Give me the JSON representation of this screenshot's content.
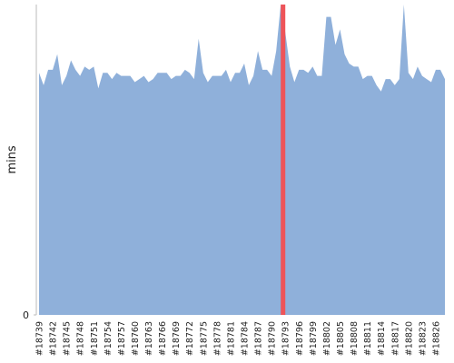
{
  "chart_data": {
    "type": "area",
    "y_label": "mins",
    "categories_start": 18739,
    "categories": [
      "#18739",
      null,
      null,
      "#18742",
      null,
      null,
      "#18745",
      null,
      null,
      "#18748",
      null,
      null,
      "#18751",
      null,
      null,
      "#18754",
      null,
      null,
      "#18757",
      null,
      null,
      "#18760",
      null,
      null,
      "#18763",
      null,
      null,
      "#18766",
      null,
      null,
      "#18769",
      null,
      null,
      "#18772",
      null,
      null,
      "#18775",
      null,
      null,
      "#18778",
      null,
      null,
      "#18781",
      null,
      null,
      "#18784",
      null,
      null,
      "#18787",
      null,
      null,
      "#18790",
      null,
      null,
      "#18793",
      null,
      null,
      "#18796",
      null,
      null,
      "#18799",
      null,
      null,
      "#18802",
      null,
      null,
      "#18805",
      null,
      null,
      "#18808",
      null,
      null,
      "#18811",
      null,
      null,
      "#18814",
      null,
      null,
      "#18817",
      null,
      null,
      "#18820",
      null,
      null,
      "#18823",
      null,
      null,
      "#18826",
      null,
      null
    ],
    "series": [
      {
        "color": "#8fb0da",
        "values": [
          78,
          74,
          79,
          79,
          84,
          74,
          77,
          82,
          79,
          77,
          80,
          79,
          80,
          73,
          78,
          78,
          76,
          78,
          77,
          77,
          77,
          75,
          76,
          77,
          75,
          76,
          78,
          78,
          78,
          76,
          77,
          77,
          79,
          78,
          76,
          89,
          78,
          75,
          77,
          77,
          77,
          79,
          75,
          78,
          78,
          81,
          74,
          77,
          85,
          79,
          79,
          77,
          85,
          100,
          91,
          80,
          75,
          79,
          79,
          78,
          80,
          77,
          77,
          96,
          96,
          87,
          92,
          84,
          81,
          80,
          80,
          76,
          77,
          77,
          74,
          72,
          76,
          76,
          74,
          76,
          100,
          78,
          76,
          80,
          77,
          76,
          75,
          79,
          79,
          76
        ]
      },
      {
        "color": "#ee5459",
        "values": [
          null,
          null,
          null,
          null,
          null,
          null,
          null,
          null,
          null,
          null,
          null,
          null,
          null,
          null,
          null,
          null,
          null,
          null,
          null,
          null,
          null,
          null,
          null,
          null,
          null,
          null,
          null,
          null,
          null,
          null,
          null,
          null,
          null,
          null,
          null,
          null,
          null,
          null,
          null,
          null,
          null,
          null,
          null,
          null,
          null,
          null,
          null,
          null,
          null,
          null,
          null,
          null,
          null,
          100,
          100,
          null,
          null,
          null,
          null,
          null,
          null,
          null,
          null,
          null,
          null,
          null,
          null,
          null,
          null,
          null,
          null,
          null,
          null,
          null,
          null,
          null,
          null,
          null,
          null,
          null,
          null,
          null,
          null,
          null,
          null,
          null,
          null,
          null,
          null,
          null
        ]
      }
    ],
    "ylim": [
      0,
      100
    ],
    "yticks": [
      0
    ]
  }
}
